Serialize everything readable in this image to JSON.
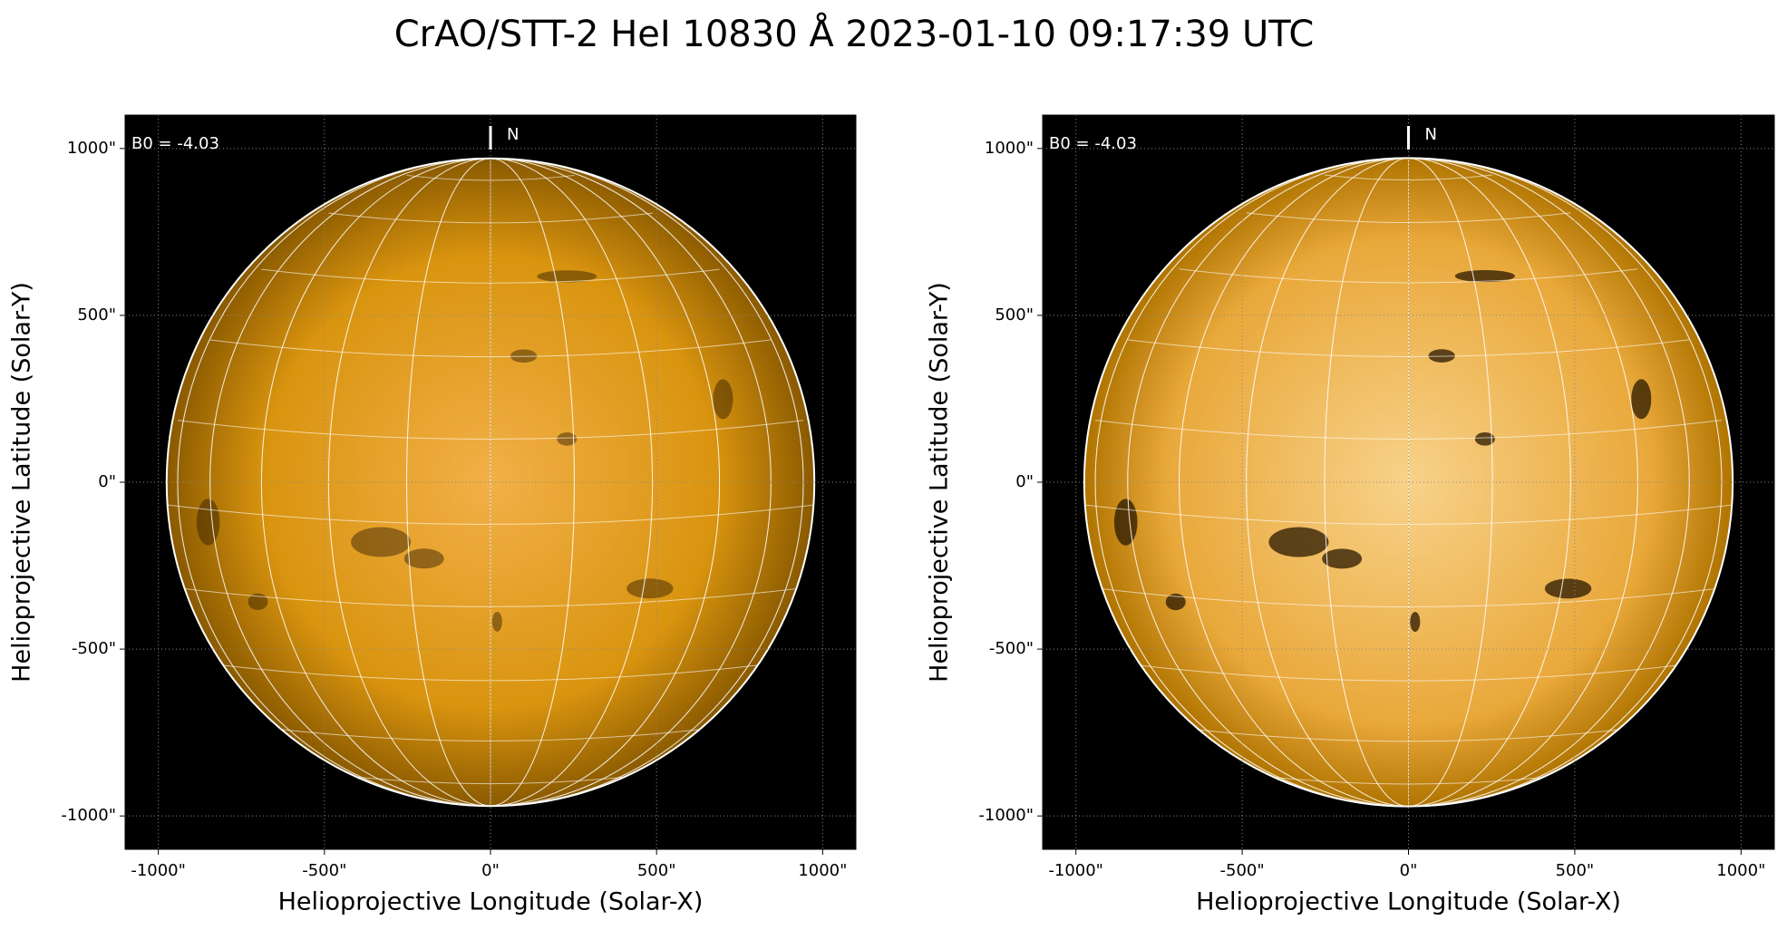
{
  "title": "CrAO/STT-2 HeI 10830 Å 2023-01-10 09:17:39 UTC",
  "chart_data": [
    {
      "type": "image",
      "xlabel": "Helioprojective Longitude (Solar-X)",
      "ylabel": "Helioprojective Latitude (Solar-Y)",
      "annotations": [
        "B0 = -4.03",
        "N"
      ],
      "xlim": [
        -1100,
        1100
      ],
      "ylim": [
        -1100,
        1100
      ],
      "xticks": [
        {
          "value": -1000,
          "label": "-1000\""
        },
        {
          "value": -500,
          "label": "-500\""
        },
        {
          "value": 0,
          "label": "0\""
        },
        {
          "value": 500,
          "label": "500\""
        },
        {
          "value": 1000,
          "label": "1000\""
        }
      ],
      "yticks": [
        {
          "value": -1000,
          "label": "-1000\""
        },
        {
          "value": -500,
          "label": "-500\""
        },
        {
          "value": 0,
          "label": "0\""
        },
        {
          "value": 500,
          "label": "500\""
        },
        {
          "value": 1000,
          "label": "1000\""
        }
      ],
      "grid": true,
      "color": "#d9940f"
    },
    {
      "type": "image",
      "xlabel": "Helioprojective Longitude (Solar-X)",
      "ylabel": "Helioprojective Latitude (Solar-Y)",
      "annotations": [
        "B0 = -4.03",
        "N"
      ],
      "xlim": [
        -1100,
        1100
      ],
      "ylim": [
        -1100,
        1100
      ],
      "xticks": [
        {
          "value": -1000,
          "label": "-1000\""
        },
        {
          "value": -500,
          "label": "-500\""
        },
        {
          "value": 0,
          "label": "0\""
        },
        {
          "value": 500,
          "label": "500\""
        },
        {
          "value": 1000,
          "label": "1000\""
        }
      ],
      "yticks": [
        {
          "value": -1000,
          "label": "-1000\""
        },
        {
          "value": -500,
          "label": "-500\""
        },
        {
          "value": 0,
          "label": "0\""
        },
        {
          "value": 500,
          "label": "500\""
        },
        {
          "value": 1000,
          "label": "1000\""
        }
      ],
      "grid": true,
      "color": "#eaa83a"
    }
  ]
}
